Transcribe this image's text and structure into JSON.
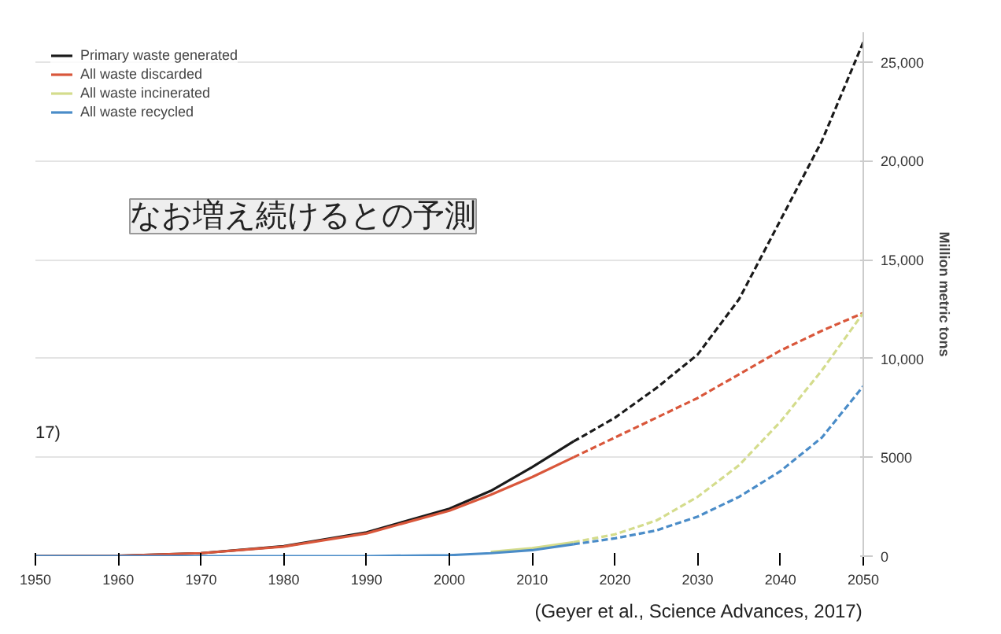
{
  "chart_data": {
    "type": "line",
    "ylabel": "Million metric tons",
    "xlim": [
      1950,
      2050
    ],
    "xticks": [
      1950,
      1960,
      1970,
      1980,
      1990,
      2000,
      2010,
      2020,
      2030,
      2040,
      2050
    ],
    "ylim": [
      0,
      26500
    ],
    "yticks": [
      0,
      {
        "value": 5000,
        "label": "5000"
      },
      {
        "value": 10000,
        "label": "10,000"
      },
      {
        "value": 15000,
        "label": "15,000"
      },
      {
        "value": 20000,
        "label": "20,000"
      },
      {
        "value": 25000,
        "label": "25,000"
      }
    ],
    "grid": "y",
    "legend": "top left",
    "marker": "none",
    "series": [
      {
        "name": "Primary waste generated",
        "color": "#1a1a1a",
        "line_style": "solid",
        "x": [
          1950,
          1960,
          1970,
          1980,
          1990,
          2000,
          2005,
          2010,
          2015
        ],
        "values": [
          0,
          20,
          150,
          500,
          1200,
          2400,
          3300,
          4500,
          5800
        ]
      },
      {
        "name": "All waste discarded",
        "color": "#d9573b",
        "line_style": "solid",
        "x": [
          1950,
          1960,
          1970,
          1980,
          1990,
          2000,
          2005,
          2010,
          2015
        ],
        "values": [
          0,
          20,
          150,
          480,
          1150,
          2300,
          3100,
          4000,
          5000
        ]
      },
      {
        "name": "All waste incinerated",
        "color": "#d4dc8c",
        "line_style": "solid",
        "x": [
          2005,
          2010,
          2015
        ],
        "values": [
          220,
          400,
          700
        ]
      },
      {
        "name": "All waste recycled",
        "color": "#4a8cc8",
        "line_style": "solid",
        "x": [
          1950,
          1960,
          1970,
          1980,
          1990,
          2000,
          2005,
          2010,
          2015
        ],
        "values": [
          0,
          0,
          0,
          0,
          0,
          50,
          150,
          300,
          600
        ]
      },
      {
        "color": "#1a1a1a",
        "line_style": "dashed",
        "x": [
          2015,
          2020,
          2025,
          2030,
          2035,
          2040,
          2045,
          2050
        ],
        "values": [
          5800,
          7000,
          8500,
          10200,
          13000,
          17000,
          21000,
          26000
        ]
      },
      {
        "color": "#d9573b",
        "line_style": "dashed",
        "x": [
          2015,
          2020,
          2025,
          2030,
          2035,
          2040,
          2045,
          2050
        ],
        "values": [
          5000,
          6000,
          7000,
          8000,
          9200,
          10400,
          11400,
          12300
        ]
      },
      {
        "color": "#d4dc8c",
        "line_style": "dashed",
        "x": [
          2015,
          2020,
          2025,
          2030,
          2035,
          2040,
          2045,
          2050
        ],
        "values": [
          700,
          1100,
          1800,
          3000,
          4600,
          6800,
          9400,
          12300
        ]
      },
      {
        "color": "#4a8cc8",
        "line_style": "dashed",
        "x": [
          2015,
          2020,
          2025,
          2030,
          2035,
          2040,
          2045,
          2050
        ],
        "values": [
          600,
          900,
          1300,
          2000,
          3000,
          4300,
          6000,
          8600
        ]
      }
    ],
    "annotations": [
      "なお増え続けるとの予測",
      "(Geyer et al., Science Advances, 2017)",
      "17)"
    ]
  }
}
